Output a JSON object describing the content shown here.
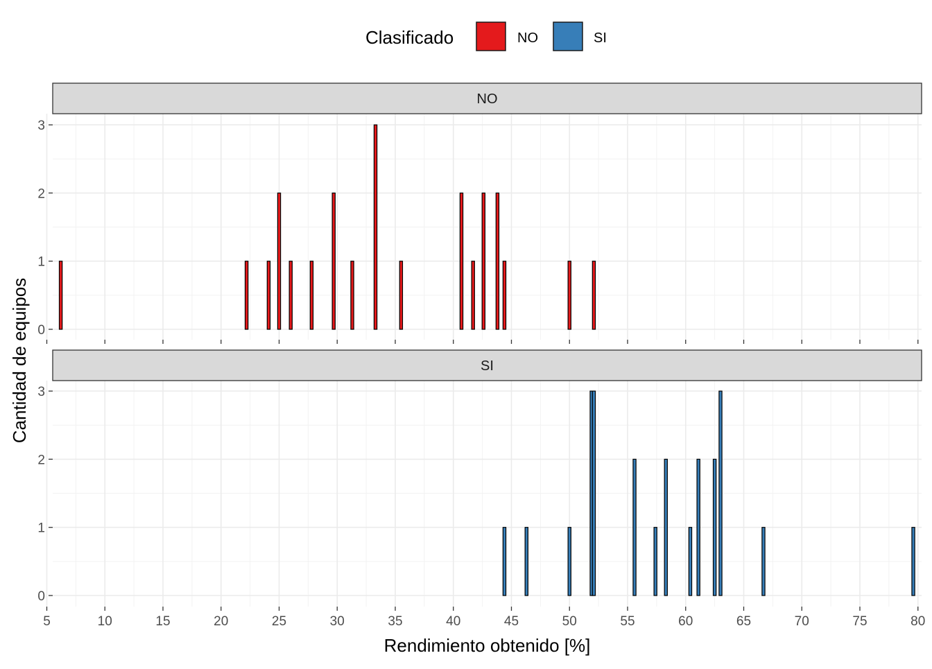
{
  "chart_data": {
    "type": "bar",
    "title": "",
    "xlabel": "Rendimiento obtenido [%]",
    "ylabel": "Cantidad de equipos",
    "xlim": [
      5,
      80
    ],
    "ylim": [
      0,
      3
    ],
    "x_ticks": [
      "5",
      "10",
      "15",
      "20",
      "25",
      "30",
      "35",
      "40",
      "45",
      "50",
      "55",
      "60",
      "65",
      "70",
      "75",
      "80"
    ],
    "y_ticks": [
      "0",
      "1",
      "2",
      "3"
    ],
    "grid": true,
    "legend": {
      "title": "Clasificado",
      "position": "top",
      "entries": [
        {
          "label": "NO",
          "color": "#E41A1C"
        },
        {
          "label": "SI",
          "color": "#377EB8"
        }
      ]
    },
    "facets": [
      {
        "label": "NO",
        "color": "#E41A1C",
        "bars": [
          {
            "x": 6.2,
            "count": 1
          },
          {
            "x": 22.2,
            "count": 1
          },
          {
            "x": 24.1,
            "count": 1
          },
          {
            "x": 25.0,
            "count": 2
          },
          {
            "x": 26.0,
            "count": 1
          },
          {
            "x": 27.8,
            "count": 1
          },
          {
            "x": 29.7,
            "count": 2
          },
          {
            "x": 31.3,
            "count": 1
          },
          {
            "x": 33.3,
            "count": 3
          },
          {
            "x": 35.5,
            "count": 1
          },
          {
            "x": 40.7,
            "count": 2
          },
          {
            "x": 41.7,
            "count": 1
          },
          {
            "x": 42.6,
            "count": 2
          },
          {
            "x": 43.8,
            "count": 2
          },
          {
            "x": 44.4,
            "count": 1
          },
          {
            "x": 50.0,
            "count": 1
          },
          {
            "x": 52.1,
            "count": 1
          }
        ]
      },
      {
        "label": "SI",
        "color": "#377EB8",
        "bars": [
          {
            "x": 44.4,
            "count": 1
          },
          {
            "x": 46.3,
            "count": 1
          },
          {
            "x": 50.0,
            "count": 1
          },
          {
            "x": 51.9,
            "count": 3
          },
          {
            "x": 52.1,
            "count": 3
          },
          {
            "x": 55.6,
            "count": 2
          },
          {
            "x": 57.4,
            "count": 1
          },
          {
            "x": 58.3,
            "count": 2
          },
          {
            "x": 60.4,
            "count": 1
          },
          {
            "x": 61.1,
            "count": 2
          },
          {
            "x": 62.5,
            "count": 2
          },
          {
            "x": 63.0,
            "count": 3
          },
          {
            "x": 66.7,
            "count": 1
          },
          {
            "x": 79.6,
            "count": 1
          }
        ]
      }
    ]
  }
}
